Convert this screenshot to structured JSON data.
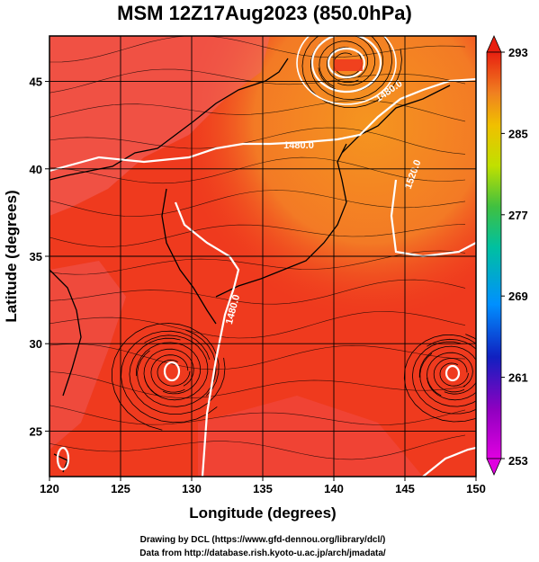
{
  "title": "MSM 12Z17Aug2023 (850.0hPa)",
  "xaxis": {
    "label": "Longitude (degrees)",
    "range": [
      120,
      150
    ],
    "ticks": [
      "120",
      "125",
      "130",
      "135",
      "140",
      "145",
      "150"
    ]
  },
  "yaxis": {
    "label": "Latitude  (degrees)",
    "range": [
      22.4,
      47.6
    ],
    "ticks": [
      "25",
      "30",
      "35",
      "40",
      "45"
    ]
  },
  "colorbar": {
    "range": [
      253,
      293
    ],
    "ticks": [
      "293",
      "285",
      "277",
      "269",
      "261",
      "253"
    ]
  },
  "contour_labels": [
    "1480.0",
    "1480.0",
    "1480.0",
    "1520.0"
  ],
  "credits": {
    "line1": "Drawing by DCL (https://www.gfd-dennou.org/library/dcl/)",
    "line2": "Data from http://database.rish.kyoto-u.ac.jp/arch/jmadata/"
  },
  "colors": {
    "field_main": "#ef3a1e",
    "field_warm": "#f58a22",
    "field_low": "#f06060",
    "streamline": "#000000",
    "contour": "#ffffff",
    "coast": "#000000"
  }
}
